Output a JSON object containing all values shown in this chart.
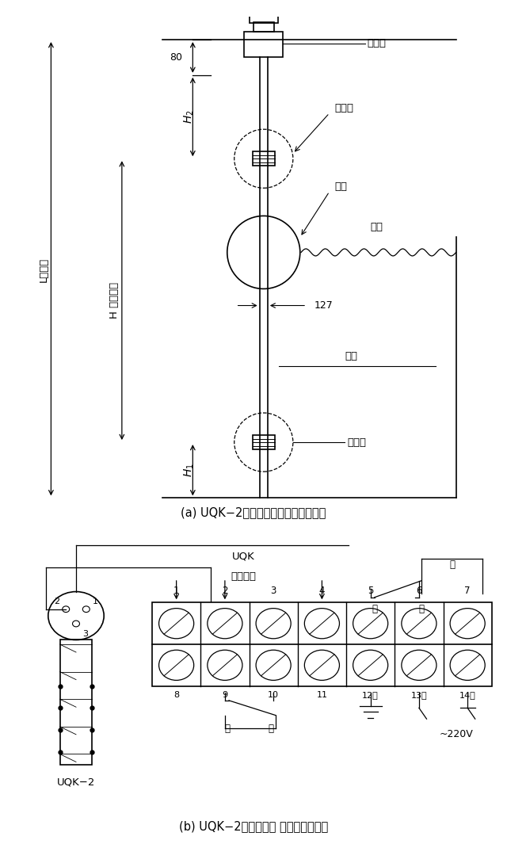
{
  "bg_color": "#ffffff",
  "title_a": "(a) UQK−2型浮球液位变送器外形结构",
  "title_b": "(b) UQK−2型浮球液位 变送器接线线路",
  "label_jiexianghe": "接线盒",
  "label_shangdangjuan": "上挡圈",
  "label_fubiu": "浮球",
  "label_yewei": "液位",
  "label_daoguan": "导管",
  "label_xiadangjuan": "下挡圈",
  "label_80": "80",
  "label_H2": "$H_2$",
  "label_H1": "$H_1$",
  "label_L": "L总长度",
  "label_H": "H 测量范围",
  "label_127": "127",
  "label_UQK": "UQK",
  "label_terminal": "接线端子",
  "label_UQK2": "UQK−2",
  "label_xia": "下",
  "label_xian": "限",
  "label_shang": "上",
  "label_xian2": "限",
  "label_di": "地",
  "label_zhong": "中",
  "label_xiang": "相",
  "label_220V": "~220V",
  "terminal_labels_top": [
    "1",
    "2",
    "3",
    "4",
    "5",
    "6",
    "7"
  ],
  "terminal_labels_bot": [
    "8",
    "9",
    "10",
    "11",
    "12地",
    "13中",
    "14相"
  ]
}
